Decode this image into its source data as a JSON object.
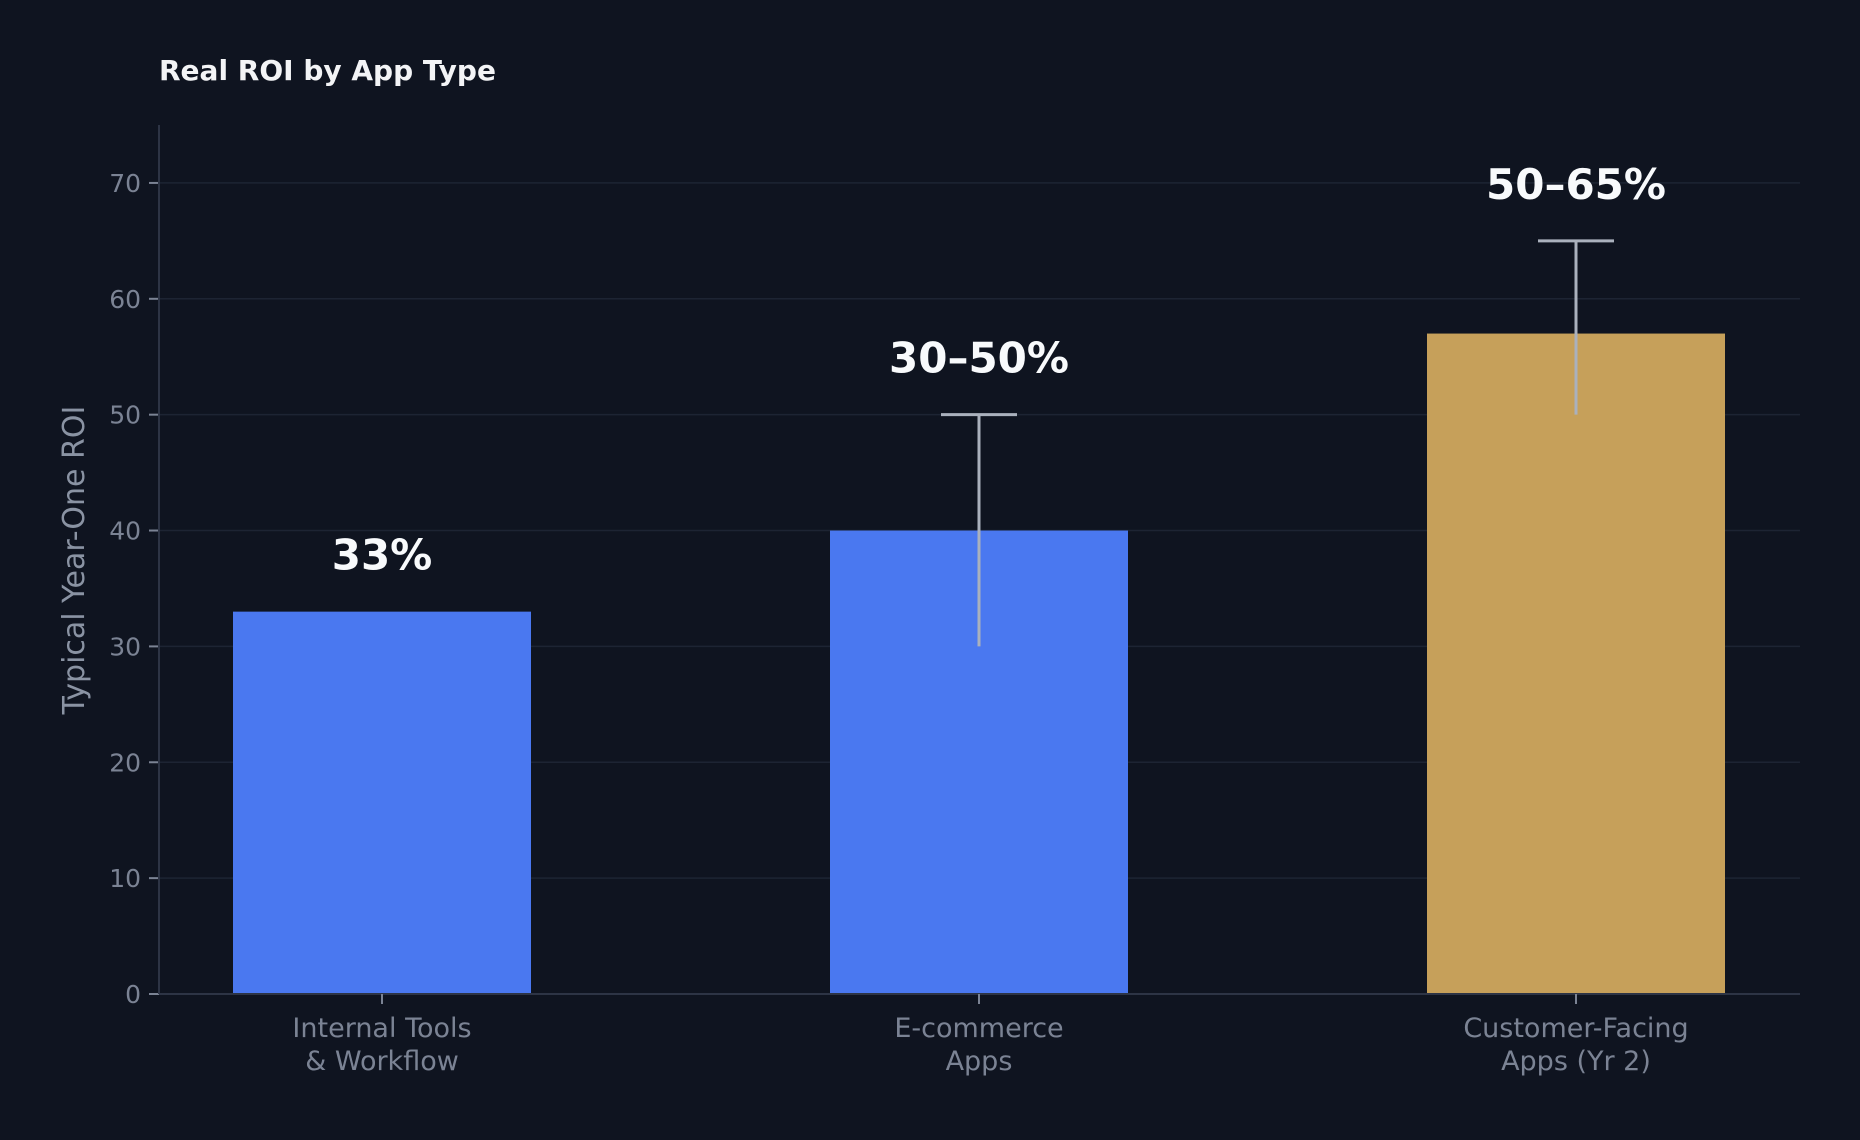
{
  "chart_data": {
    "type": "bar",
    "title": "Real ROI by App Type",
    "ylabel": "Typical Year-One ROI",
    "xlabel": "",
    "ylim": [
      0,
      75
    ],
    "yticks": [
      0,
      10,
      20,
      30,
      40,
      50,
      60,
      70
    ],
    "grid": true,
    "categories": [
      [
        "Internal Tools",
        "& Workflow"
      ],
      [
        "E-commerce",
        "Apps"
      ],
      [
        "Customer-Facing",
        "Apps (Yr 2)"
      ]
    ],
    "values": [
      33,
      40,
      57
    ],
    "error_ranges": [
      null,
      [
        30,
        50
      ],
      [
        50,
        65
      ]
    ],
    "data_labels": [
      "33%",
      "30–50%",
      "50–65%"
    ],
    "colors": [
      "#4a78f0",
      "#4a78f0",
      "#c6a05a"
    ],
    "background": "#0f1420"
  }
}
